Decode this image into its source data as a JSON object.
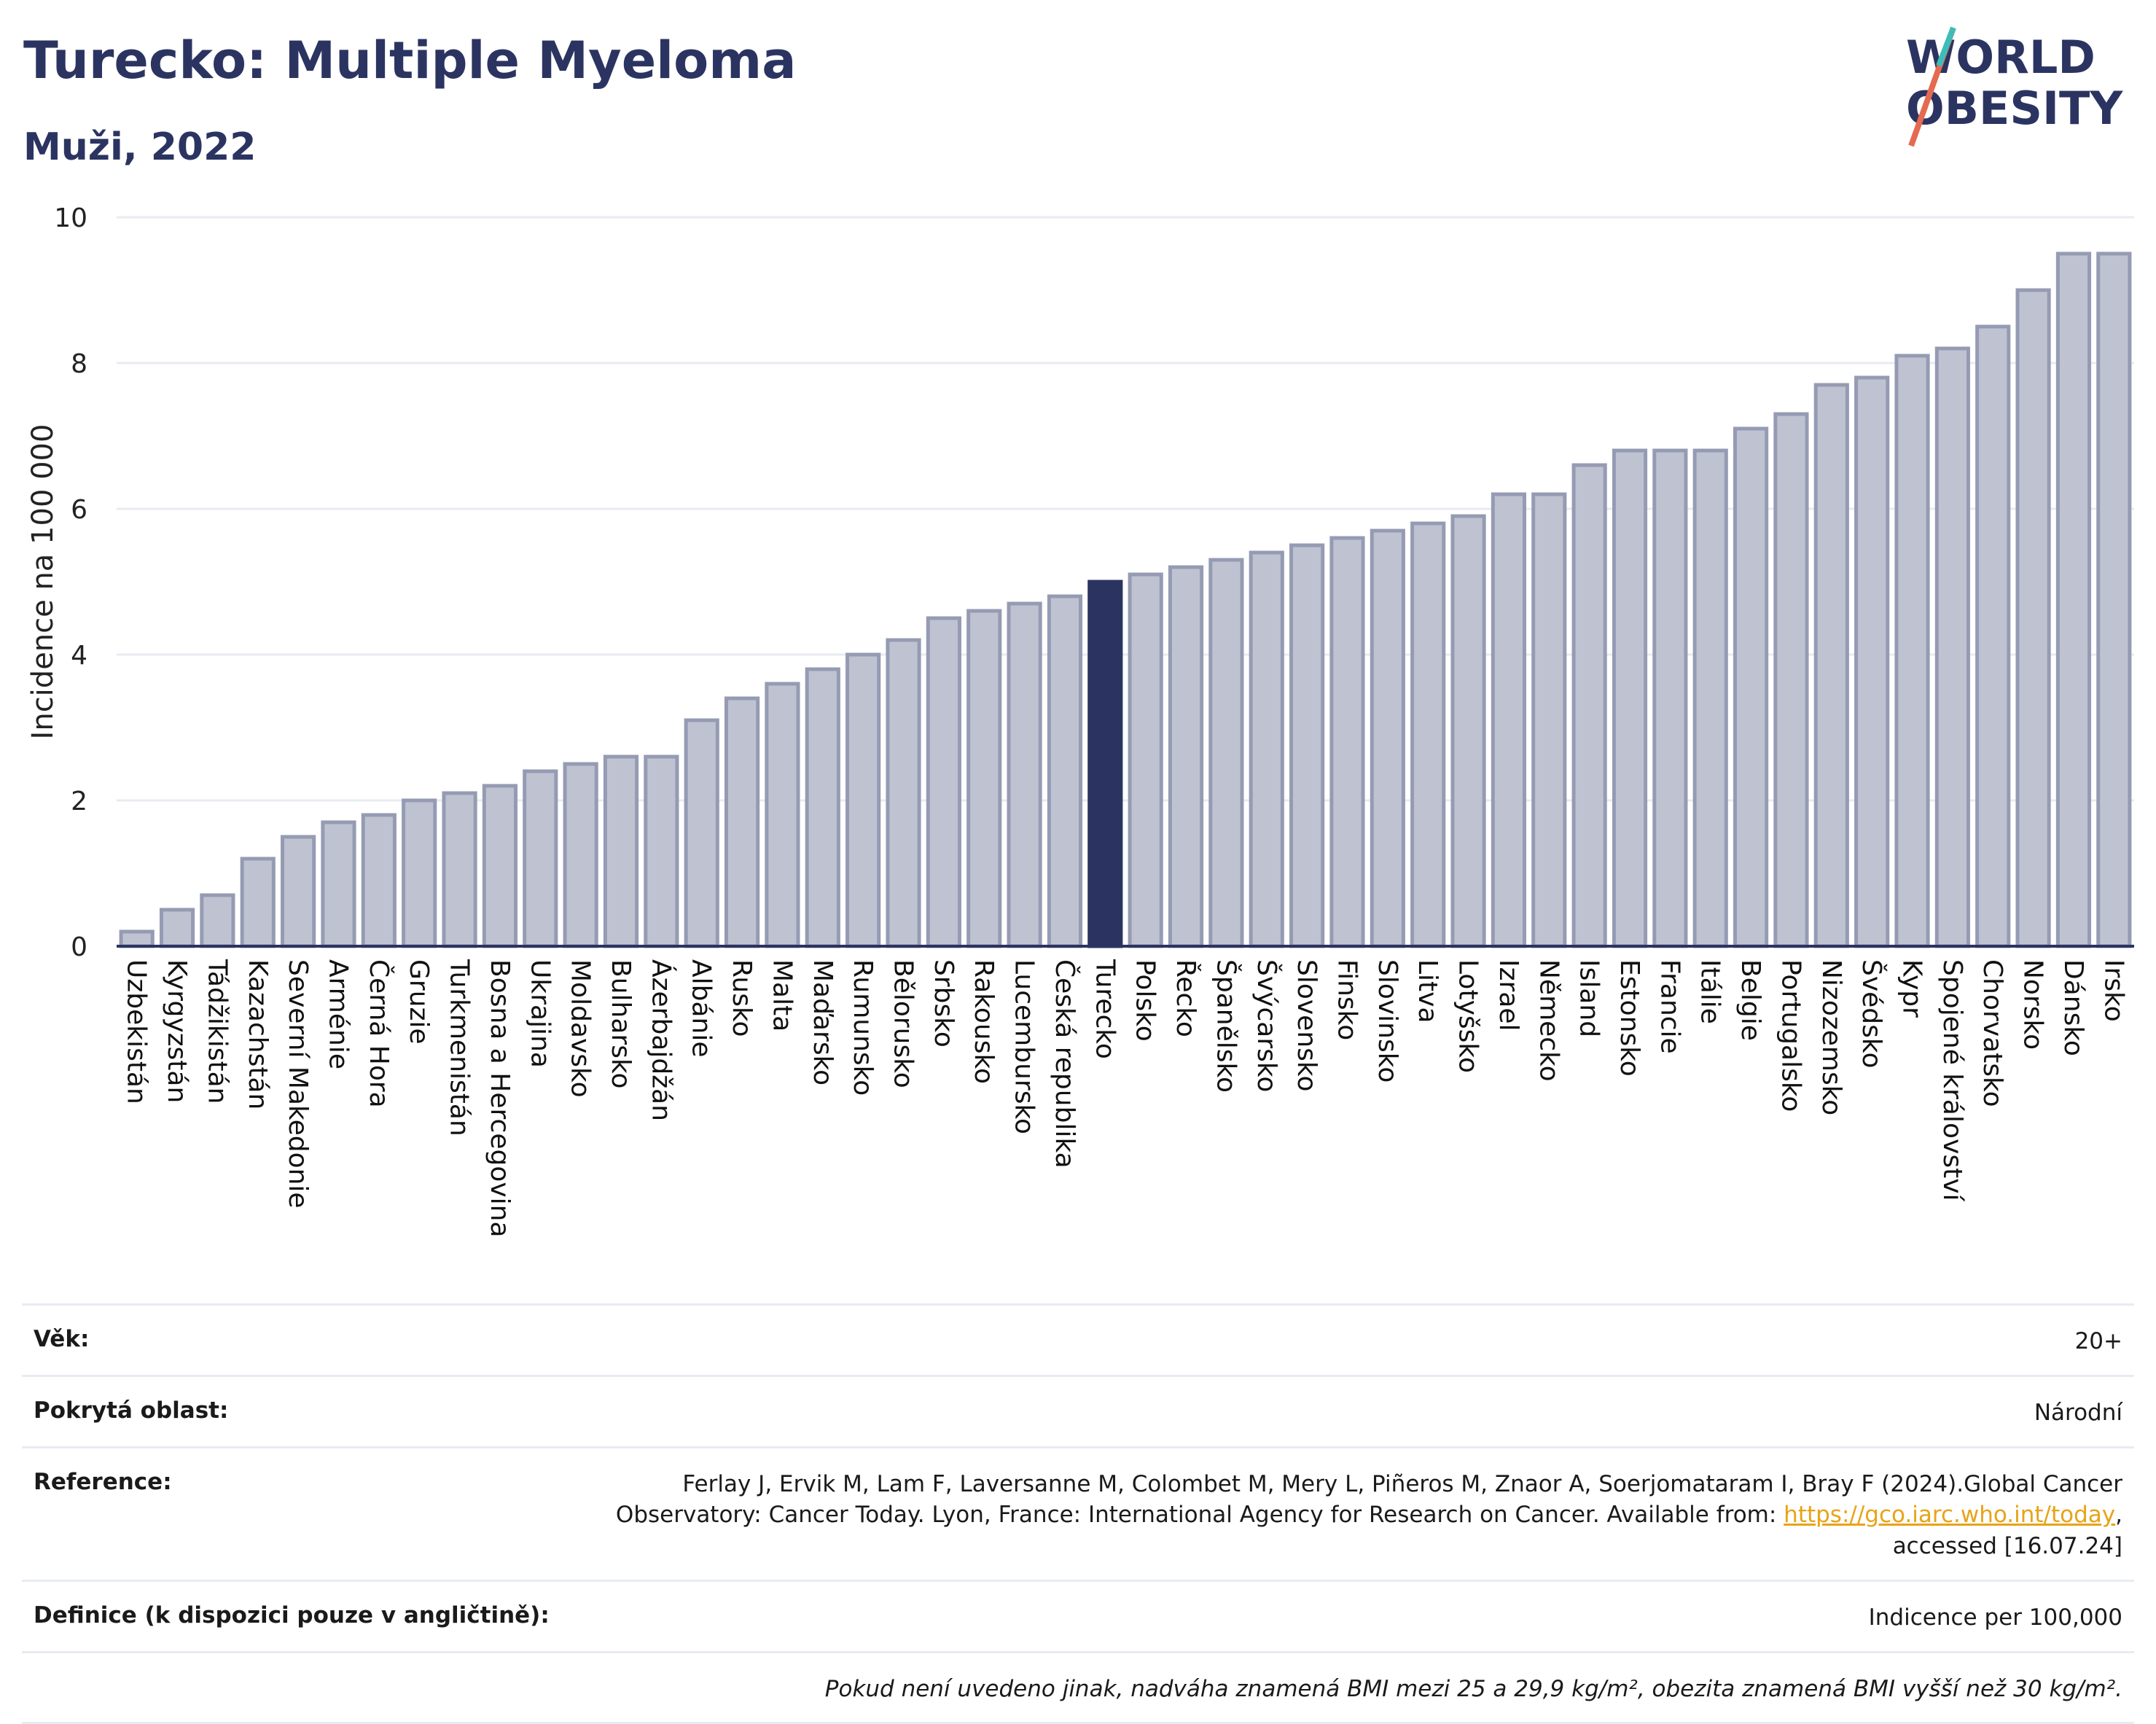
{
  "header": {
    "title": "Turecko: Multiple Myeloma",
    "subtitle": "Muži, 2022"
  },
  "logo": {
    "line1": "WORLD",
    "line2": "OBESITY"
  },
  "colors": {
    "highlight": "#2b3461",
    "bar": "#bfc3d1",
    "bar_stroke": "#959bb3",
    "grid": "#e8ebf2"
  },
  "chart_data": {
    "type": "bar",
    "ylabel": "Incidence na 100 000",
    "ylim": [
      0,
      10
    ],
    "yticks": [
      0,
      2,
      4,
      6,
      8,
      10
    ],
    "highlight": "Turecko",
    "categories": [
      "Uzbekistán",
      "Kyrgyzstán",
      "Tádžikistán",
      "Kazachstán",
      "Severní Makedonie",
      "Arménie",
      "Černá Hora",
      "Gruzie",
      "Turkmenistán",
      "Bosna a Hercegovina",
      "Ukrajina",
      "Moldavsko",
      "Bulharsko",
      "Ázerbajdžán",
      "Albánie",
      "Rusko",
      "Malta",
      "Maďarsko",
      "Rumunsko",
      "Bělorusko",
      "Srbsko",
      "Rakousko",
      "Lucembursko",
      "Česká republika",
      "Turecko",
      "Polsko",
      "Řecko",
      "Španělsko",
      "Švýcarsko",
      "Slovensko",
      "Finsko",
      "Slovinsko",
      "Litva",
      "Lotyšsko",
      "Izrael",
      "Německo",
      "Island",
      "Estonsko",
      "Francie",
      "Itálie",
      "Belgie",
      "Portugalsko",
      "Nizozemsko",
      "Švédsko",
      "Kypr",
      "Spojené království",
      "Chorvatsko",
      "Norsko",
      "Dánsko",
      "Irsko"
    ],
    "values": [
      0.2,
      0.5,
      0.7,
      1.2,
      1.5,
      1.7,
      1.8,
      2.0,
      2.1,
      2.2,
      2.4,
      2.5,
      2.6,
      2.6,
      3.1,
      3.4,
      3.6,
      3.8,
      4.0,
      4.2,
      4.5,
      4.6,
      4.7,
      4.8,
      5.0,
      5.1,
      5.2,
      5.3,
      5.4,
      5.5,
      5.6,
      5.7,
      5.8,
      5.9,
      6.2,
      6.2,
      6.6,
      6.8,
      6.8,
      6.8,
      7.1,
      7.3,
      7.7,
      7.8,
      8.1,
      8.2,
      8.5,
      9.0,
      9.5,
      9.5
    ],
    "grid": true
  },
  "meta": {
    "age_label": "Věk:",
    "age_value": "20+",
    "area_label": "Pokrytá oblast:",
    "area_value": "Národní",
    "reference_label": "Reference:",
    "reference_text_1": "Ferlay J, Ervik M, Lam F, Laversanne M, Colombet M, Mery L, Piñeros M, Znaor A, Soerjomataram I, Bray F (2024).Global Cancer Observatory: Cancer Today. Lyon, France: International Agency for Research on Cancer. Available from: ",
    "reference_link": "https://gco.iarc.who.int/today",
    "reference_text_2": ", accessed [16.07.24]",
    "definition_label": "Definice (k dispozici pouze v angličtině):",
    "definition_value": "Indicence per 100,000",
    "note": "Pokud není uvedeno jinak, nadváha znamená BMI mezi 25 a 29,9 kg/m², obezita znamená BMI vyšší než 30 kg/m²."
  }
}
